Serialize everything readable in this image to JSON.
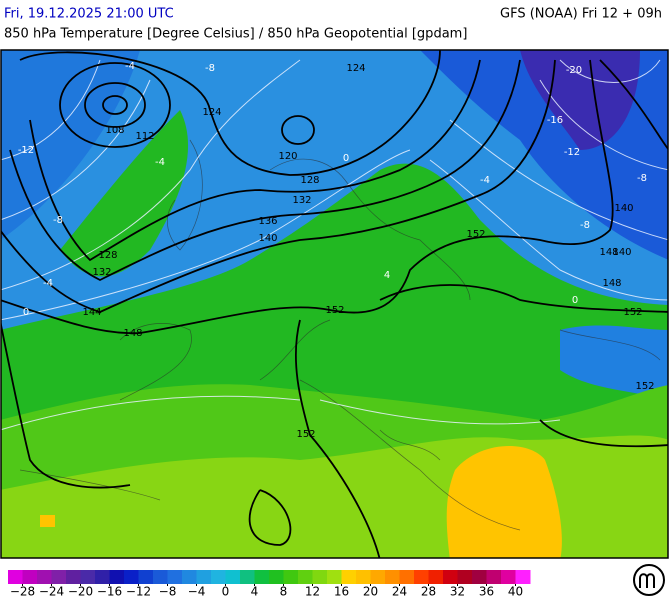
{
  "header": {
    "datetime": "Fri, 19.12.2025 21:00 UTC",
    "model": "GFS (NOAA) Fri 12 + 09h",
    "title": "850 hPa Temperature [Degree Celsius] / 850 hPa Geopotential [gpdam]"
  },
  "map": {
    "geopotential_labels": [
      "108",
      "112",
      "124",
      "124",
      "120",
      "128",
      "132",
      "136",
      "140",
      "128",
      "132",
      "144",
      "148",
      "152",
      "152",
      "152",
      "148",
      "140",
      "140",
      "152",
      "148",
      "152"
    ],
    "temperature_labels": [
      "-4",
      "-8",
      "-12",
      "-8",
      "-4",
      "-20",
      "-16",
      "-12",
      "-8",
      "-4",
      "0",
      "4",
      "0",
      "-4",
      "-8",
      "0"
    ]
  },
  "scale": {
    "min": -30,
    "max": 42,
    "colors": [
      "#e000e0",
      "#c000c0",
      "#a010b0",
      "#8020a8",
      "#6020a0",
      "#4a2aa8",
      "#3020a8",
      "#1010b0",
      "#0a20c8",
      "#1040d0",
      "#1a5ad8",
      "#2070e0",
      "#2088e0",
      "#20a0e0",
      "#20b4e0",
      "#10c0d0",
      "#10c080",
      "#10c040",
      "#20c020",
      "#40c810",
      "#60d010",
      "#80d810",
      "#a0e010",
      "#ffd000",
      "#ffc000",
      "#ffa800",
      "#ff9000",
      "#ff7000",
      "#ff4000",
      "#f02000",
      "#d00010",
      "#b00020",
      "#a00040",
      "#c00070",
      "#e000a0",
      "#ff20ff"
    ],
    "ticks": [
      {
        "value": -28,
        "label": "−28"
      },
      {
        "value": -24,
        "label": "−24"
      },
      {
        "value": -20,
        "label": "−20"
      },
      {
        "value": -16,
        "label": "−16"
      },
      {
        "value": -12,
        "label": "−12"
      },
      {
        "value": -8,
        "label": "−8"
      },
      {
        "value": -4,
        "label": "−4"
      },
      0,
      4,
      8,
      12,
      16,
      20,
      24,
      28,
      32,
      36,
      40
    ]
  }
}
